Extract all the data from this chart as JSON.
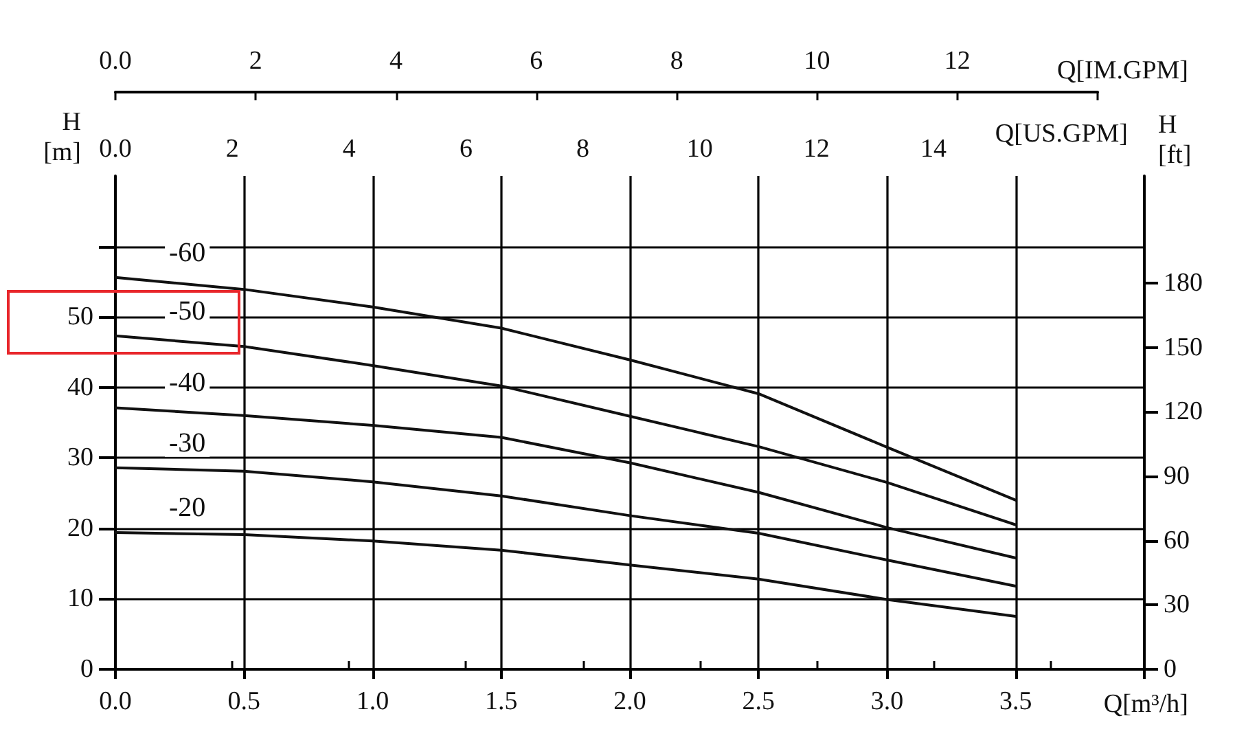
{
  "chart_data": {
    "type": "line",
    "xlabel": "Q[m³/h]",
    "ylabel": "H [m]",
    "y2label": "H [ft]",
    "x2label": "Q[US.GPM]",
    "x": [
      0,
      0.5,
      1.0,
      1.5,
      2.0,
      2.5,
      3.0,
      3.5
    ],
    "series": [
      {
        "name": "-60",
        "color": "#111111",
        "values": [
          55.6,
          53.9,
          51.4,
          48.4,
          43.9,
          39.1,
          31.5,
          24
        ]
      },
      {
        "name": "-50",
        "color": "#111111",
        "values": [
          47.3,
          45.8,
          43.1,
          40.2,
          35.9,
          31.6,
          26.5,
          20.5
        ]
      },
      {
        "name": "-40",
        "color": "#111111",
        "values": [
          37.1,
          36.0,
          34.6,
          32.9,
          29.3,
          25.1,
          20.1,
          15.8
        ]
      },
      {
        "name": "-30",
        "color": "#111111",
        "values": [
          28.6,
          28.1,
          26.6,
          24.6,
          21.8,
          19.3,
          15.5,
          11.8
        ]
      },
      {
        "name": "-20",
        "color": "#111111",
        "values": [
          19.4,
          19.1,
          18.2,
          16.9,
          14.8,
          12.8,
          9.9,
          7.5
        ]
      }
    ],
    "xlim": [
      0,
      4
    ],
    "xticks": [
      {
        "value": 0,
        "label": "0.0"
      },
      0.5,
      {
        "value": 1,
        "label": "1.0"
      },
      1.5,
      {
        "value": 2,
        "label": "2.0"
      },
      2.5,
      {
        "value": 3,
        "label": "3.0"
      },
      3.5,
      {
        "value": 4,
        "label": null
      }
    ],
    "ylim": [
      0,
      70
    ],
    "yticks": [
      0,
      10,
      20,
      30,
      40,
      50,
      {
        "value": 60,
        "label": null
      }
    ],
    "y2lim": [
      0,
      230
    ],
    "y2ticks": [
      0,
      30,
      60,
      90,
      120,
      150,
      180
    ],
    "annotations": [
      "0.0",
      "2",
      "4",
      "6",
      "8",
      "10",
      "12",
      "Q[IM.GPM]"
    ],
    "x2lim": [
      0,
      17.61
    ],
    "x2ticks": [
      {
        "value": 0,
        "label": "0.0"
      },
      2,
      4,
      6,
      8,
      10,
      12,
      14,
      {
        "value": 16,
        "label": null
      }
    ],
    "grid": true,
    "legend": false,
    "marker": "none",
    "line_style": "solid"
  }
}
